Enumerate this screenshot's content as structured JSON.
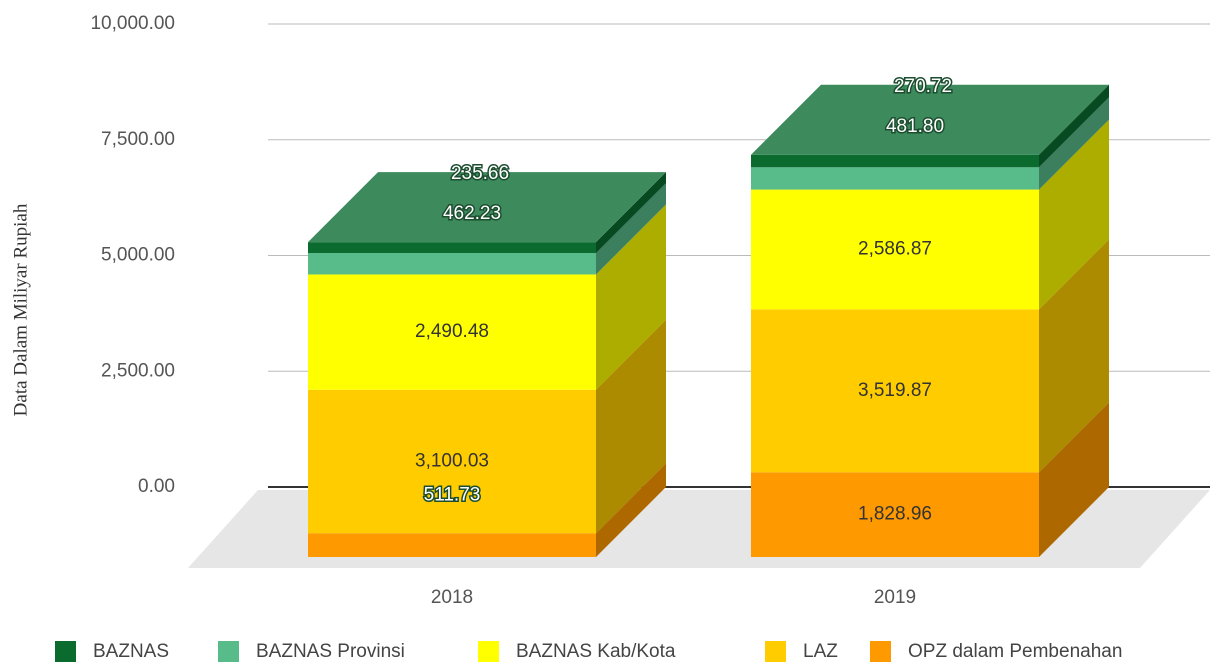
{
  "chart_data": {
    "type": "bar3d_stacked",
    "y_label": "Data Dalam Miliyar Rupiah",
    "categories": [
      "2018",
      "2019"
    ],
    "series": [
      {
        "name": "BAZNAS",
        "color": "#0b6b2f",
        "values": [
          235.66,
          270.72
        ],
        "value_labels": [
          "235.66",
          "270.72"
        ]
      },
      {
        "name": "BAZNAS Provinsi",
        "color": "#57bb8a",
        "values": [
          462.23,
          481.8
        ],
        "value_labels": [
          "462.23",
          "481.80"
        ]
      },
      {
        "name": "BAZNAS Kab/Kota",
        "color": "#ffff00",
        "values": [
          2490.48,
          2586.87
        ],
        "value_labels": [
          "2,490.48",
          "2,586.87"
        ]
      },
      {
        "name": "LAZ",
        "color": "#ffcc00",
        "values": [
          3100.03,
          3519.87
        ],
        "value_labels": [
          "3,100.03",
          "3,519.87"
        ]
      },
      {
        "name": "OPZ dalam Pembenahan",
        "color": "#ff9900",
        "values": [
          511.73,
          1828.96
        ],
        "value_labels": [
          "511.73",
          "1,828.96"
        ]
      }
    ],
    "ylim": [
      0,
      10000
    ],
    "yticks": [
      {
        "value": 0,
        "label": "0.00"
      },
      {
        "value": 2500,
        "label": "2,500.00"
      },
      {
        "value": 5000,
        "label": "5,000.00"
      },
      {
        "value": 7500,
        "label": "7,500.00"
      },
      {
        "value": 10000,
        "label": "10,000.00"
      }
    ],
    "grid": true,
    "legend": "bottom"
  }
}
